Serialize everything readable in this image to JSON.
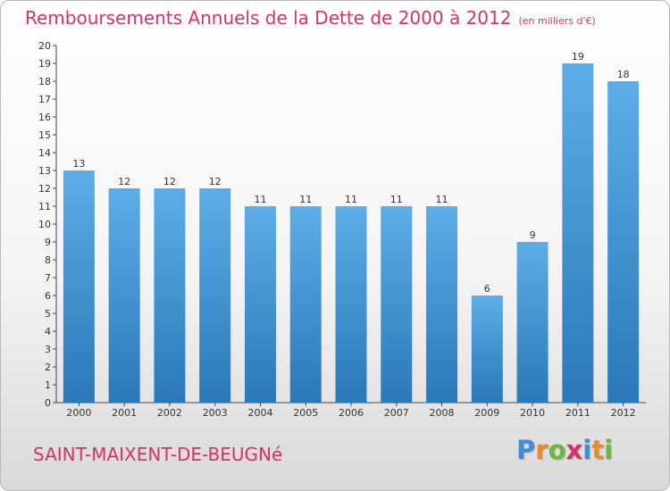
{
  "title": "Remboursements Annuels de la Dette de 2000 à 2012",
  "unit_note": "(en milliers d'€)",
  "commune": "SAINT-MAIXENT-DE-BEUGNé",
  "logo": {
    "letters": [
      "P",
      "r",
      "o",
      "x",
      "i",
      "t",
      "i"
    ],
    "colors": [
      "#3a8fd6",
      "#e98a2c",
      "#6bb63b",
      "#d4326b",
      "#3a8fd6",
      "#e98a2c",
      "#6bb63b"
    ]
  },
  "colors": {
    "title": "#d4326b",
    "bar_top": "#5dade8",
    "bar_bottom": "#2a78b8"
  },
  "chart_data": {
    "type": "bar",
    "title": "Remboursements Annuels de la Dette de 2000 à 2012",
    "categories": [
      "2000",
      "2001",
      "2002",
      "2003",
      "2004",
      "2005",
      "2006",
      "2007",
      "2008",
      "2009",
      "2010",
      "2011",
      "2012"
    ],
    "values": [
      13,
      12,
      12,
      12,
      11,
      11,
      11,
      11,
      11,
      6,
      9,
      19,
      18
    ],
    "ylim": [
      0,
      20
    ],
    "yticks": [
      0,
      1,
      2,
      3,
      4,
      5,
      6,
      7,
      8,
      9,
      10,
      11,
      12,
      13,
      14,
      15,
      16,
      17,
      18,
      19,
      20
    ],
    "xlabel": "",
    "ylabel": "",
    "grid": false,
    "data_labels": true
  }
}
